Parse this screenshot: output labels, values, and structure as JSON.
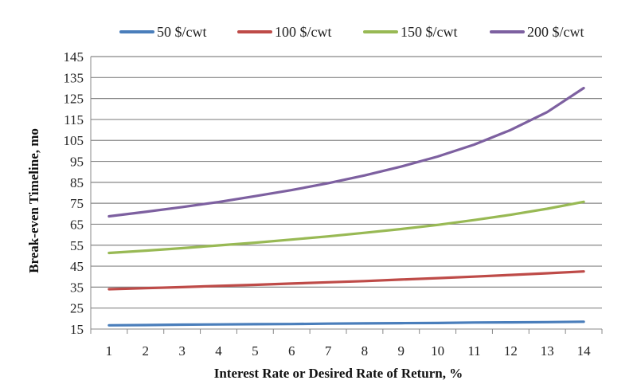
{
  "chart_data": {
    "type": "line",
    "xlabel": "Interest Rate or Desired Rate of Return, %",
    "ylabel": "Break-even Timeline, mo",
    "x": [
      1,
      2,
      3,
      4,
      5,
      6,
      7,
      8,
      9,
      10,
      11,
      12,
      13,
      14
    ],
    "xlim": [
      0.5,
      14.5
    ],
    "ylim": [
      15,
      145
    ],
    "y_ticks": [
      15,
      25,
      35,
      45,
      55,
      65,
      75,
      85,
      95,
      105,
      115,
      125,
      135,
      145
    ],
    "grid": "horizontal",
    "legend_position": "top",
    "series": [
      {
        "name": "50 $/cwt",
        "color": "#4a7ebb",
        "values": [
          16.8,
          16.9,
          17.1,
          17.2,
          17.3,
          17.4,
          17.6,
          17.7,
          17.8,
          17.9,
          18.1,
          18.2,
          18.3,
          18.5
        ]
      },
      {
        "name": "100 $/cwt",
        "color": "#be4b48",
        "values": [
          34.0,
          34.5,
          35.0,
          35.6,
          36.1,
          36.7,
          37.3,
          37.9,
          38.6,
          39.3,
          40.0,
          40.8,
          41.6,
          42.5
        ]
      },
      {
        "name": "150 $/cwt",
        "color": "#98b954",
        "values": [
          51.3,
          52.4,
          53.6,
          54.9,
          56.2,
          57.7,
          59.2,
          60.9,
          62.7,
          64.7,
          67.0,
          69.5,
          72.4,
          75.7
        ]
      },
      {
        "name": "200 $/cwt",
        "color": "#7d60a0",
        "values": [
          68.8,
          70.9,
          73.2,
          75.6,
          78.4,
          81.3,
          84.6,
          88.3,
          92.5,
          97.3,
          103.0,
          110.0,
          118.5,
          130.0
        ]
      }
    ]
  }
}
